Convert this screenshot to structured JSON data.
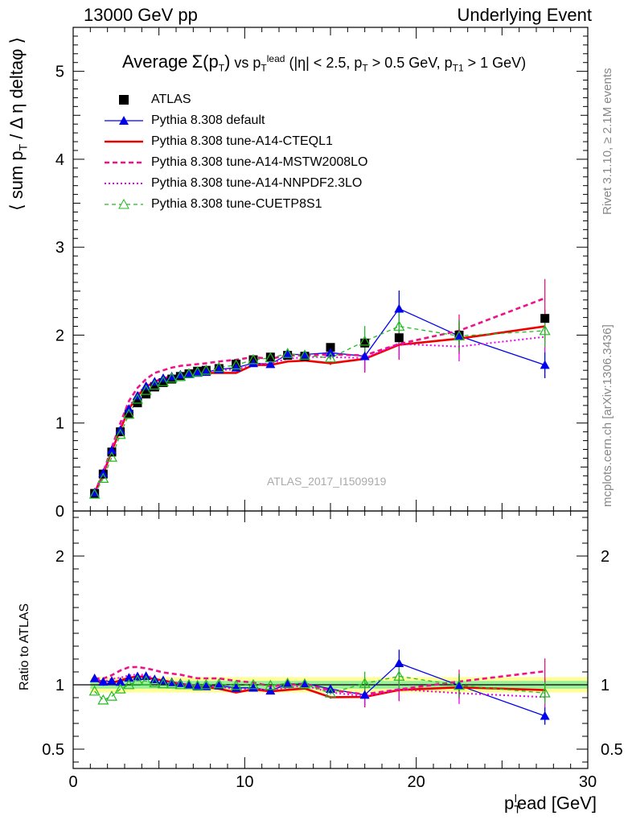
{
  "header": {
    "left": "13000 GeV pp",
    "right": "Underlying Event"
  },
  "side_text": {
    "rivet": "Rivet 3.1.10, ≥ 2.1M events",
    "mcplots": "mcplots.cern.ch [arXiv:1306.3436]"
  },
  "watermark": "ATLAS_2017_I1509919",
  "title": {
    "prefix": "Average",
    "sigma": "Σ(p",
    "sigma_sub": "T",
    "sigma_close": ")",
    "vs": " vs p",
    "vs_sub": "T",
    "vs_sup": "lead",
    "cuts": " (|η| < 2.5, p",
    "cuts_sub": "T",
    "cuts_mid": " > 0.5 GeV, p",
    "cuts_sub2": "T1",
    "cuts_end": " > 1 GeV)"
  },
  "axes": {
    "main_ylabel": "⟨ sum p",
    "main_ylabel_sub": "T",
    "main_ylabel_end": " / Δ η deltaφ ⟩",
    "ratio_ylabel": "Ratio to ATLAS",
    "xlabel": "p",
    "xlabel_sub": "T",
    "xlabel_sup": "l",
    "xlabel_end": "ead [GeV]"
  },
  "legend": [
    {
      "label": "ATLAS",
      "color": "#000000",
      "style": "square-marker"
    },
    {
      "label": "Pythia 8.308 default",
      "color": "#0000ee",
      "style": "solid-triangle"
    },
    {
      "label": "Pythia 8.308 tune-A14-CTEQL1",
      "color": "#ee0000",
      "style": "solid-thick"
    },
    {
      "label": "Pythia 8.308 tune-A14-MSTW2008LO",
      "color": "#ee1188",
      "style": "dashed-thick"
    },
    {
      "label": "Pythia 8.308 tune-A14-NNPDF2.3LO",
      "color": "#ee00ee",
      "style": "dotted"
    },
    {
      "label": "Pythia 8.308 tune-CUETP8S1",
      "color": "#22bb22",
      "style": "dashed-open-triangle"
    }
  ],
  "chart_data": {
    "type": "line",
    "xlim": [
      0,
      30
    ],
    "ylim_main": [
      0,
      5.5
    ],
    "ylim_ratio": [
      0.35,
      2.35
    ],
    "x_ticks": [
      0,
      10,
      20,
      30
    ],
    "y_ticks_main": [
      0,
      1,
      2,
      3,
      4,
      5
    ],
    "y_ticks_ratio": [
      0.5,
      1,
      2
    ],
    "x": [
      1.25,
      1.75,
      2.25,
      2.75,
      3.25,
      3.75,
      4.25,
      4.75,
      5.25,
      5.75,
      6.25,
      6.75,
      7.25,
      7.75,
      8.5,
      9.5,
      10.5,
      11.5,
      12.5,
      13.5,
      15.0,
      17.0,
      19.0,
      22.5,
      27.5
    ],
    "data": {
      "name": "ATLAS",
      "y": [
        0.2,
        0.42,
        0.67,
        0.9,
        1.1,
        1.23,
        1.33,
        1.41,
        1.46,
        1.5,
        1.53,
        1.56,
        1.59,
        1.6,
        1.62,
        1.67,
        1.72,
        1.75,
        1.77,
        1.76,
        1.86,
        1.91,
        1.97,
        2.0,
        2.19
      ]
    },
    "series": [
      {
        "name": "Pythia 8.308 default",
        "color": "#0000ee",
        "y": [
          0.21,
          0.43,
          0.69,
          0.92,
          1.16,
          1.31,
          1.42,
          1.47,
          1.51,
          1.53,
          1.55,
          1.56,
          1.57,
          1.58,
          1.61,
          1.63,
          1.68,
          1.67,
          1.78,
          1.78,
          1.8,
          1.76,
          2.3,
          1.99,
          1.66
        ]
      },
      {
        "name": "Pythia 8.308 tune-A14-CTEQL1",
        "color": "#ee0000",
        "y": [
          0.21,
          0.42,
          0.68,
          0.93,
          1.16,
          1.31,
          1.41,
          1.47,
          1.51,
          1.53,
          1.54,
          1.55,
          1.56,
          1.57,
          1.57,
          1.57,
          1.66,
          1.66,
          1.7,
          1.71,
          1.68,
          1.73,
          1.89,
          1.96,
          2.1
        ]
      },
      {
        "name": "Pythia 8.308 tune-A14-MSTW2008LO",
        "color": "#ee1188",
        "y": [
          0.21,
          0.44,
          0.72,
          1.0,
          1.25,
          1.4,
          1.5,
          1.57,
          1.6,
          1.63,
          1.65,
          1.66,
          1.67,
          1.68,
          1.7,
          1.72,
          1.75,
          1.73,
          1.77,
          1.77,
          1.78,
          1.77,
          1.9,
          2.05,
          2.42
        ]
      },
      {
        "name": "Pythia 8.308 tune-A14-NNPDF2.3LO",
        "color": "#ee00ee",
        "y": [
          0.21,
          0.43,
          0.7,
          0.95,
          1.18,
          1.33,
          1.43,
          1.48,
          1.51,
          1.53,
          1.55,
          1.56,
          1.58,
          1.59,
          1.6,
          1.61,
          1.66,
          1.68,
          1.73,
          1.75,
          1.75,
          1.74,
          1.9,
          1.87,
          1.98
        ]
      },
      {
        "name": "Pythia 8.308 tune-CUETP8S1",
        "color": "#22bb22",
        "y": [
          0.19,
          0.37,
          0.61,
          0.87,
          1.1,
          1.27,
          1.37,
          1.43,
          1.47,
          1.51,
          1.53,
          1.56,
          1.58,
          1.6,
          1.63,
          1.66,
          1.72,
          1.74,
          1.79,
          1.77,
          1.74,
          1.93,
          2.1,
          1.99,
          2.05
        ]
      }
    ]
  }
}
